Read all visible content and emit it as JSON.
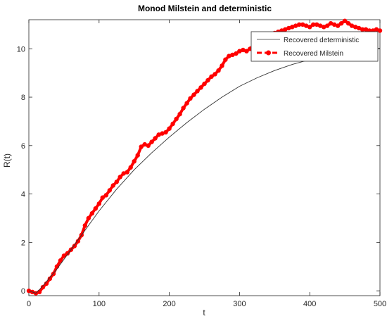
{
  "chart_data": {
    "type": "line",
    "title": "Monod Milstein and deterministic",
    "xlabel": "t",
    "ylabel": "R(t)",
    "xlim": [
      0,
      500
    ],
    "ylim": [
      -0.2,
      11.2
    ],
    "xticks": [
      0,
      100,
      200,
      300,
      400,
      500
    ],
    "yticks": [
      0,
      2,
      4,
      6,
      8,
      10
    ],
    "grid": false,
    "legend_placement": "top-right",
    "series": [
      {
        "name": "Recovered deterministic",
        "style": "thin-solid",
        "color": "#333333",
        "x": [
          0,
          10,
          20,
          40,
          60,
          80,
          100,
          125,
          150,
          175,
          200,
          225,
          250,
          275,
          300,
          325,
          350,
          375,
          400,
          425,
          450,
          475,
          500
        ],
        "y": [
          0.0,
          -0.1,
          0.2,
          0.9,
          1.7,
          2.5,
          3.3,
          4.2,
          5.0,
          5.7,
          6.35,
          6.95,
          7.5,
          8.0,
          8.45,
          8.8,
          9.1,
          9.35,
          9.55,
          9.72,
          9.85,
          9.95,
          10.02
        ]
      },
      {
        "name": "Recovered Milstein",
        "style": "thick-dashed-markers",
        "color": "#ff0000",
        "x": [
          0,
          5,
          10,
          15,
          20,
          25,
          30,
          35,
          40,
          45,
          50,
          55,
          60,
          65,
          70,
          75,
          80,
          85,
          90,
          95,
          100,
          105,
          110,
          115,
          120,
          125,
          130,
          135,
          140,
          145,
          150,
          155,
          160,
          165,
          170,
          175,
          180,
          185,
          190,
          195,
          200,
          205,
          210,
          215,
          220,
          225,
          230,
          235,
          240,
          245,
          250,
          255,
          260,
          265,
          270,
          275,
          280,
          285,
          290,
          295,
          300,
          305,
          310,
          315,
          320,
          325,
          330,
          335,
          340,
          345,
          350,
          355,
          360,
          365,
          370,
          375,
          380,
          385,
          390,
          395,
          400,
          405,
          410,
          415,
          420,
          425,
          430,
          435,
          440,
          445,
          450,
          455,
          460,
          465,
          470,
          475,
          480,
          485,
          490,
          495,
          500
        ],
        "y": [
          0.0,
          -0.05,
          -0.1,
          -0.05,
          0.15,
          0.3,
          0.5,
          0.7,
          1.0,
          1.25,
          1.45,
          1.55,
          1.7,
          1.85,
          2.05,
          2.3,
          2.7,
          3.0,
          3.2,
          3.4,
          3.6,
          3.85,
          3.95,
          4.15,
          4.35,
          4.5,
          4.7,
          4.85,
          4.9,
          5.1,
          5.35,
          5.6,
          5.95,
          6.05,
          6.0,
          6.15,
          6.3,
          6.45,
          6.5,
          6.55,
          6.7,
          6.9,
          7.1,
          7.3,
          7.55,
          7.75,
          7.95,
          8.1,
          8.25,
          8.4,
          8.55,
          8.7,
          8.85,
          8.95,
          9.1,
          9.3,
          9.55,
          9.7,
          9.75,
          9.8,
          9.9,
          9.95,
          9.9,
          10.0,
          10.15,
          10.3,
          10.45,
          10.5,
          10.55,
          10.6,
          10.65,
          10.7,
          10.75,
          10.8,
          10.85,
          10.9,
          10.95,
          11.0,
          11.0,
          10.95,
          10.9,
          11.0,
          11.0,
          10.95,
          10.9,
          10.95,
          11.05,
          11.0,
          10.95,
          11.05,
          11.15,
          11.05,
          10.95,
          10.9,
          10.85,
          10.8,
          10.8,
          10.75,
          10.75,
          10.8,
          10.75
        ]
      }
    ]
  }
}
